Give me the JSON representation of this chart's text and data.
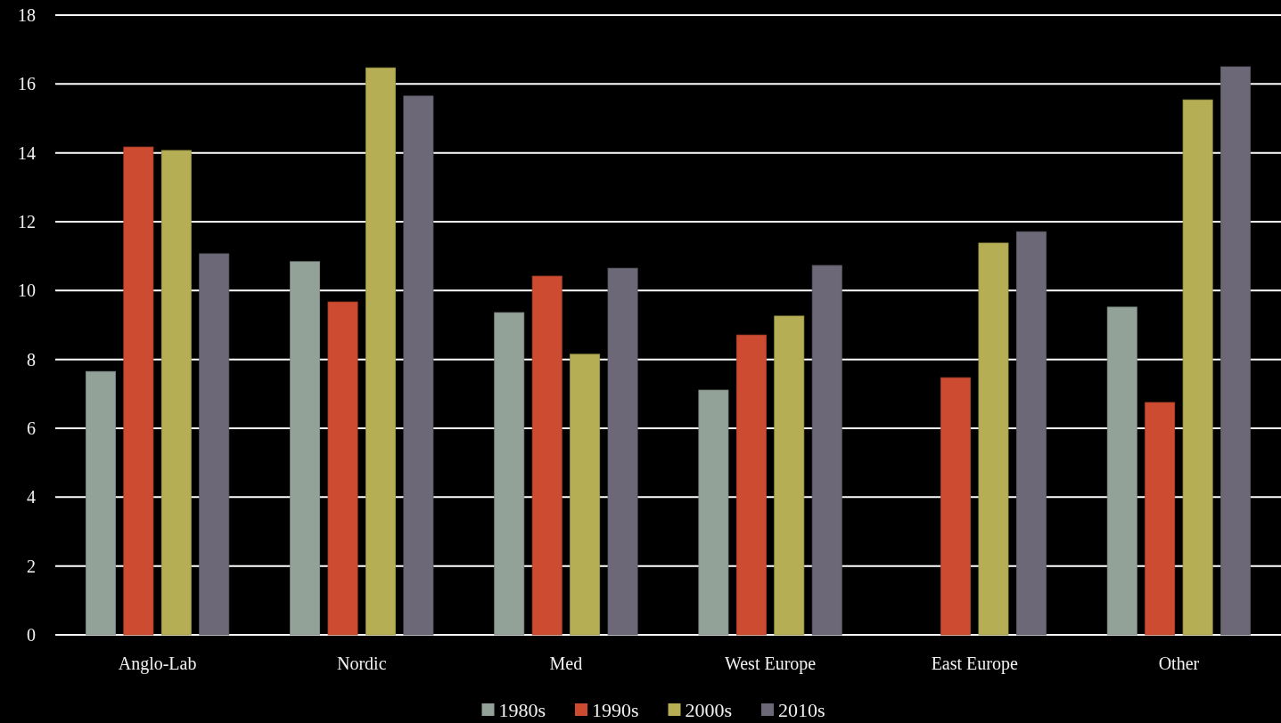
{
  "chart_data": {
    "type": "bar",
    "categories": [
      "Anglo-Lab",
      "Nordic",
      "Med",
      "West Europe",
      "East Europe",
      "Other"
    ],
    "series": [
      {
        "name": "1980s",
        "color": "#93a299",
        "values": [
          7.65,
          10.84,
          9.36,
          7.11,
          null,
          9.52
        ]
      },
      {
        "name": "1990s",
        "color": "#cc4b31",
        "values": [
          14.17,
          9.67,
          10.42,
          8.71,
          7.47,
          6.75
        ]
      },
      {
        "name": "2000s",
        "color": "#b5ae54",
        "values": [
          14.07,
          16.47,
          8.15,
          9.26,
          11.38,
          15.54
        ]
      },
      {
        "name": "2010s",
        "color": "#6c6878",
        "values": [
          11.07,
          15.65,
          10.65,
          10.73,
          11.71,
          16.5
        ]
      }
    ],
    "ylim": [
      0,
      18
    ],
    "yticks": [
      0,
      2,
      4,
      6,
      8,
      10,
      12,
      14,
      16,
      18
    ],
    "grid": "y",
    "legend": "bottom"
  }
}
